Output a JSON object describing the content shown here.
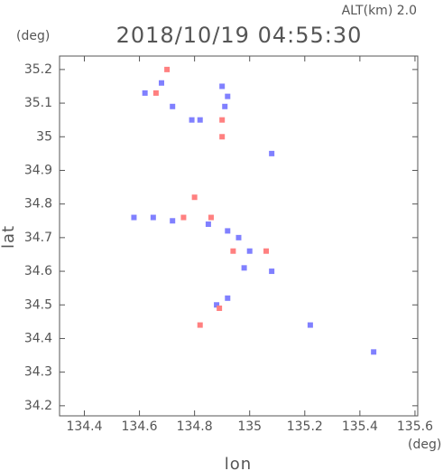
{
  "chart_data": {
    "type": "scatter",
    "title": "2018/10/19 04:55:30",
    "subtitle": "ALT(km) 2.0",
    "x_label": "lon",
    "y_label": "lat",
    "x_unit": "(deg)",
    "y_unit": "(deg)",
    "xlim": [
      134.31,
      135.61
    ],
    "ylim": [
      34.17,
      35.24
    ],
    "xticks": [
      134.4,
      134.6,
      134.8,
      135.0,
      135.2,
      135.4,
      135.6
    ],
    "yticks": [
      34.2,
      34.3,
      34.4,
      34.5,
      34.6,
      34.7,
      34.8,
      34.9,
      35.0,
      35.1,
      35.2
    ],
    "series": [
      {
        "color": "#8080ff",
        "x": [
          134.62,
          134.68,
          134.72,
          134.79,
          134.82,
          134.9,
          134.91,
          134.92,
          135.08,
          134.58,
          134.65,
          134.72,
          134.85,
          134.92,
          134.96,
          135.0,
          134.98,
          134.88,
          134.92,
          135.08,
          135.45,
          135.22
        ],
        "values": [
          35.13,
          35.16,
          35.09,
          35.05,
          35.05,
          35.15,
          35.09,
          35.12,
          34.95,
          34.76,
          34.76,
          34.75,
          34.74,
          34.72,
          34.7,
          34.66,
          34.61,
          34.5,
          34.52,
          34.6,
          34.36,
          34.44
        ]
      },
      {
        "color": "#ff8080",
        "x": [
          134.7,
          134.66,
          134.9,
          134.8,
          134.76,
          134.86,
          134.94,
          135.06,
          134.89,
          134.82,
          134.9
        ],
        "values": [
          35.2,
          35.13,
          35.0,
          34.82,
          34.76,
          34.76,
          34.66,
          34.66,
          34.49,
          34.44,
          35.05
        ]
      }
    ]
  }
}
